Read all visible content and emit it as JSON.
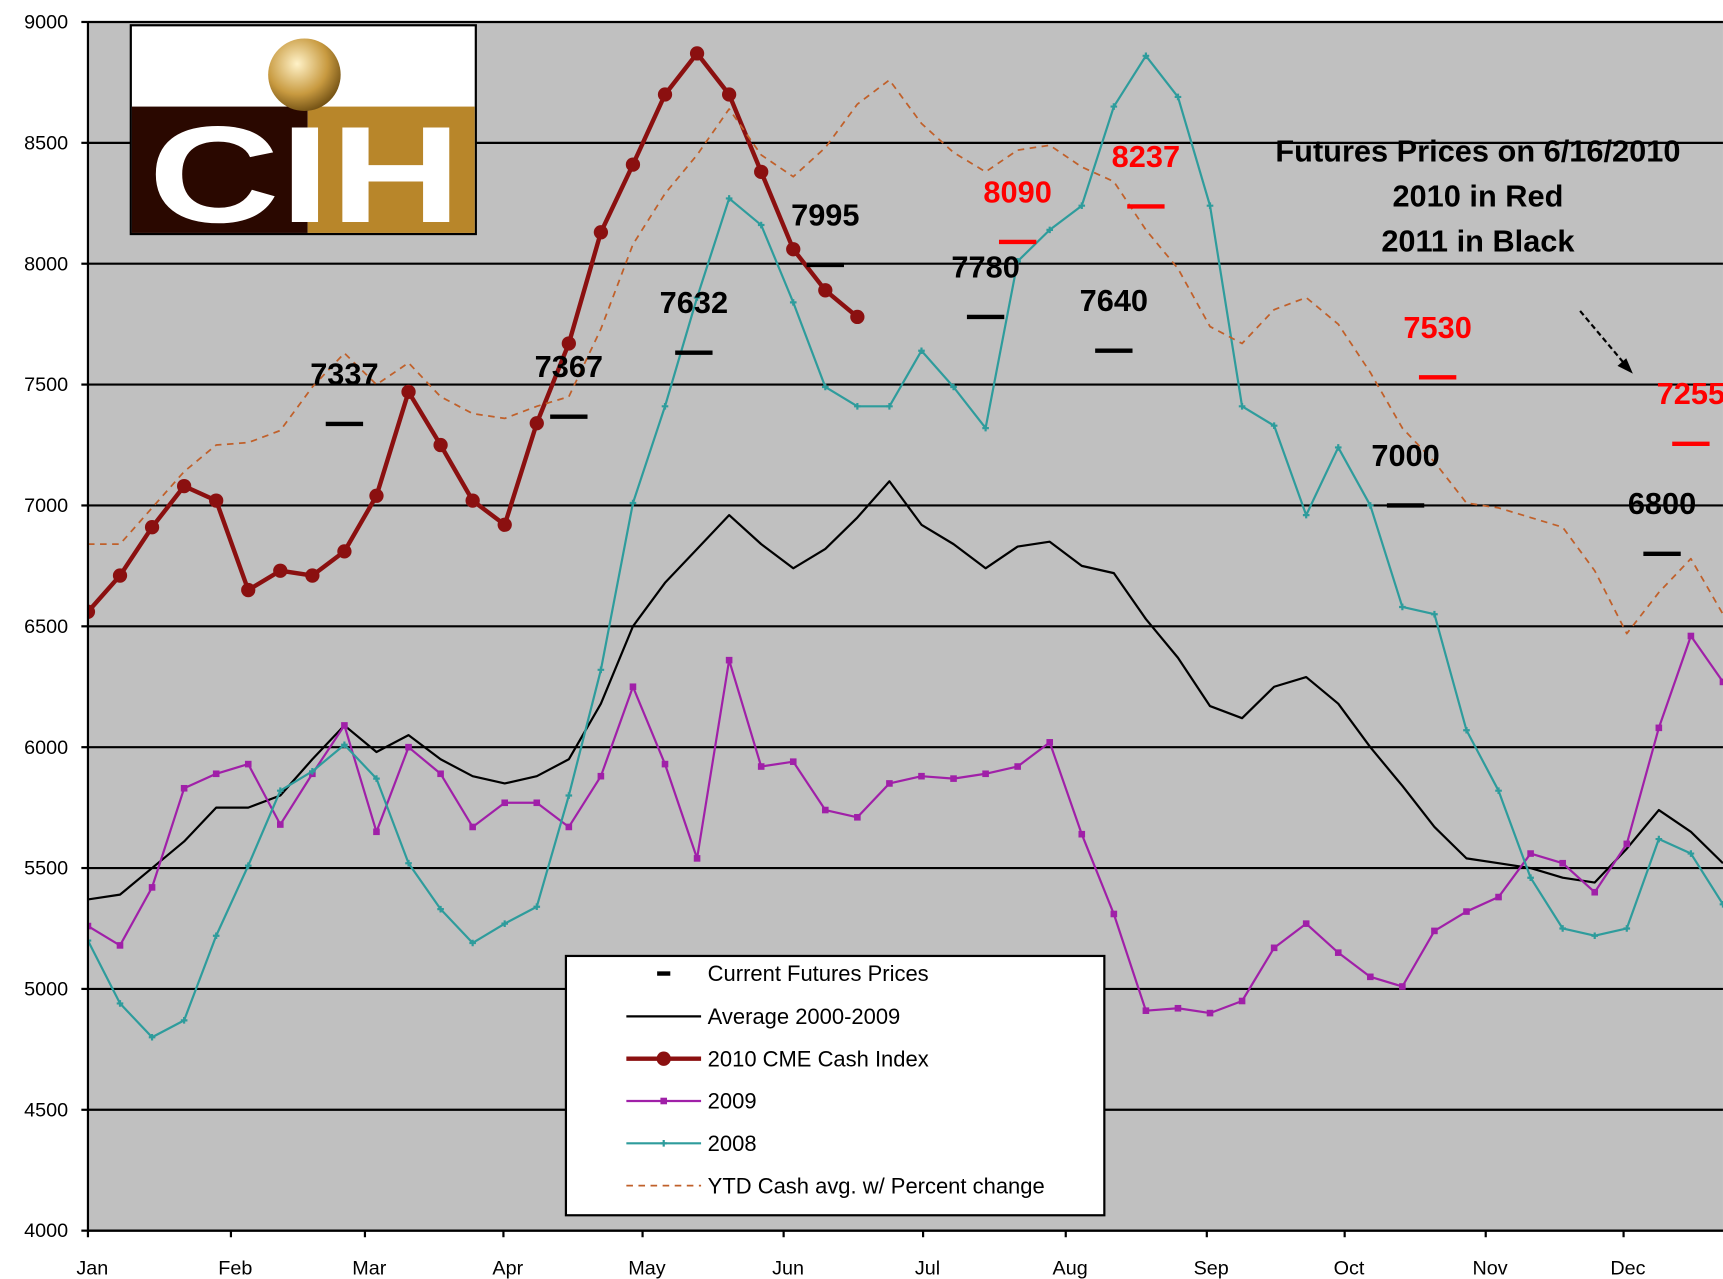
{
  "chart_data": {
    "type": "line",
    "annotations": [
      "Futures Prices on 6/16/2010",
      "2010 in Red",
      "2011 in Black"
    ],
    "logo": "CIH",
    "x": [
      0,
      1,
      2,
      3,
      4,
      5,
      6,
      7,
      8,
      9,
      10,
      11,
      12,
      13,
      14,
      15,
      16,
      17,
      18,
      19,
      20,
      21,
      22,
      23,
      24,
      25,
      26,
      27,
      28,
      29,
      30,
      31,
      32,
      33,
      34,
      35,
      36,
      37,
      38,
      39,
      40,
      41,
      42,
      43,
      44,
      45,
      46,
      47,
      48,
      49,
      50,
      51
    ],
    "xlim": [
      0,
      51
    ],
    "xticks": [
      {
        "value": 0,
        "label": "Jan"
      },
      {
        "value": 4.46,
        "label": "Feb"
      },
      {
        "value": 8.64,
        "label": "Mar"
      },
      {
        "value": 12.96,
        "label": "Apr"
      },
      {
        "value": 17.3,
        "label": "May"
      },
      {
        "value": 21.7,
        "label": "Jun"
      },
      {
        "value": 26.05,
        "label": "Jul"
      },
      {
        "value": 30.5,
        "label": "Aug"
      },
      {
        "value": 34.9,
        "label": "Sep"
      },
      {
        "value": 39.2,
        "label": "Oct"
      },
      {
        "value": 43.6,
        "label": "Nov"
      },
      {
        "value": 47.9,
        "label": "Dec"
      }
    ],
    "ylim": [
      4000,
      9000
    ],
    "yticks": [
      4000,
      4500,
      5000,
      5500,
      6000,
      6500,
      7000,
      7500,
      8000,
      8500,
      9000
    ],
    "grid": true,
    "futures": {
      "name": "Current Futures Prices",
      "color": "#000000",
      "x": [
        8.0,
        15.0,
        18.9,
        23.0,
        28.0,
        29.0,
        33.0,
        32.0,
        42.1,
        41.1,
        50.0,
        49.1
      ],
      "values": [
        7337,
        7367,
        7632,
        7995,
        7780,
        8090,
        8237,
        7640,
        7530,
        7000,
        7255,
        6800
      ],
      "colors": [
        "#000000",
        "#000000",
        "#000000",
        "#000000",
        "#000000",
        "#ff0000",
        "#ff0000",
        "#000000",
        "#ff0000",
        "#000000",
        "#ff0000",
        "#000000"
      ]
    },
    "series": [
      {
        "name": "Average 2000-2009",
        "color": "#000000",
        "width": 2,
        "marker": "none",
        "values": [
          5370,
          5390,
          5500,
          5610,
          5750,
          5750,
          5800,
          5950,
          6090,
          5980,
          6050,
          5950,
          5880,
          5850,
          5880,
          5950,
          6180,
          6500,
          6680,
          6820,
          6960,
          6840,
          6740,
          6820,
          6950,
          7100,
          6920,
          6840,
          6740,
          6830,
          6850,
          6750,
          6720,
          6530,
          6370,
          6170,
          6120,
          6250,
          6290,
          6180,
          6000,
          5840,
          5670,
          5540,
          5520,
          5500,
          5460,
          5440,
          5580,
          5740,
          5650,
          5520
        ]
      },
      {
        "name": "2010 CME Cash Index",
        "color": "#8b1010",
        "width": 4,
        "marker": "circle",
        "values": [
          6560,
          6710,
          6910,
          7080,
          7020,
          6650,
          6730,
          6710,
          6810,
          7040,
          7470,
          7250,
          7020,
          6920,
          7340,
          7670,
          8130,
          8410,
          8700,
          8870,
          8700,
          8380,
          8060,
          7890,
          7780,
          null,
          null,
          null,
          null,
          null,
          null,
          null,
          null,
          null,
          null,
          null,
          null,
          null,
          null,
          null,
          null,
          null,
          null,
          null,
          null,
          null,
          null,
          null,
          null,
          null,
          null,
          null
        ]
      },
      {
        "name": "2009",
        "color": "#a020a8",
        "width": 2,
        "marker": "square",
        "values": [
          5260,
          5180,
          5420,
          5830,
          5890,
          5930,
          5680,
          5890,
          6090,
          5650,
          6000,
          5890,
          5670,
          5770,
          5770,
          5670,
          5880,
          6250,
          5930,
          5540,
          6360,
          5920,
          5940,
          5740,
          5710,
          5850,
          5880,
          5870,
          5890,
          5920,
          6020,
          5640,
          5310,
          4910,
          4920,
          4900,
          4950,
          5170,
          5270,
          5150,
          5050,
          5010,
          5240,
          5320,
          5380,
          5560,
          5520,
          5400,
          5600,
          6080,
          6460,
          6270
        ]
      },
      {
        "name": "2008",
        "color": "#2e9c9c",
        "width": 2,
        "marker": "plus",
        "values": [
          5200,
          4940,
          4800,
          4870,
          5220,
          5510,
          5820,
          5900,
          6010,
          5870,
          5520,
          5330,
          5190,
          5270,
          5340,
          5800,
          6320,
          7010,
          7410,
          7860,
          8270,
          8160,
          7840,
          7490,
          7410,
          7410,
          7640,
          7490,
          7320,
          8010,
          8140,
          8240,
          8650,
          8860,
          8690,
          8240,
          7410,
          7330,
          6960,
          7240,
          7000,
          6580,
          6550,
          6070,
          5820,
          5460,
          5250,
          5220,
          5250,
          5620,
          5560,
          5350
        ]
      },
      {
        "name": "YTD Cash avg. w/ Percent change",
        "color": "#c0602a",
        "width": 1.6,
        "marker": "none",
        "dash": true,
        "values": [
          6840,
          6840,
          6990,
          7140,
          7250,
          7260,
          7310,
          7490,
          7630,
          7500,
          7590,
          7450,
          7380,
          7360,
          7410,
          7450,
          7730,
          8080,
          8290,
          8450,
          8640,
          8450,
          8360,
          8480,
          8660,
          8760,
          8580,
          8460,
          8380,
          8470,
          8490,
          8400,
          8340,
          8140,
          7980,
          7740,
          7670,
          7810,
          7860,
          7750,
          7550,
          7320,
          7180,
          7010,
          6990,
          6950,
          6910,
          6730,
          6470,
          6640,
          6780,
          6550
        ]
      }
    ]
  }
}
